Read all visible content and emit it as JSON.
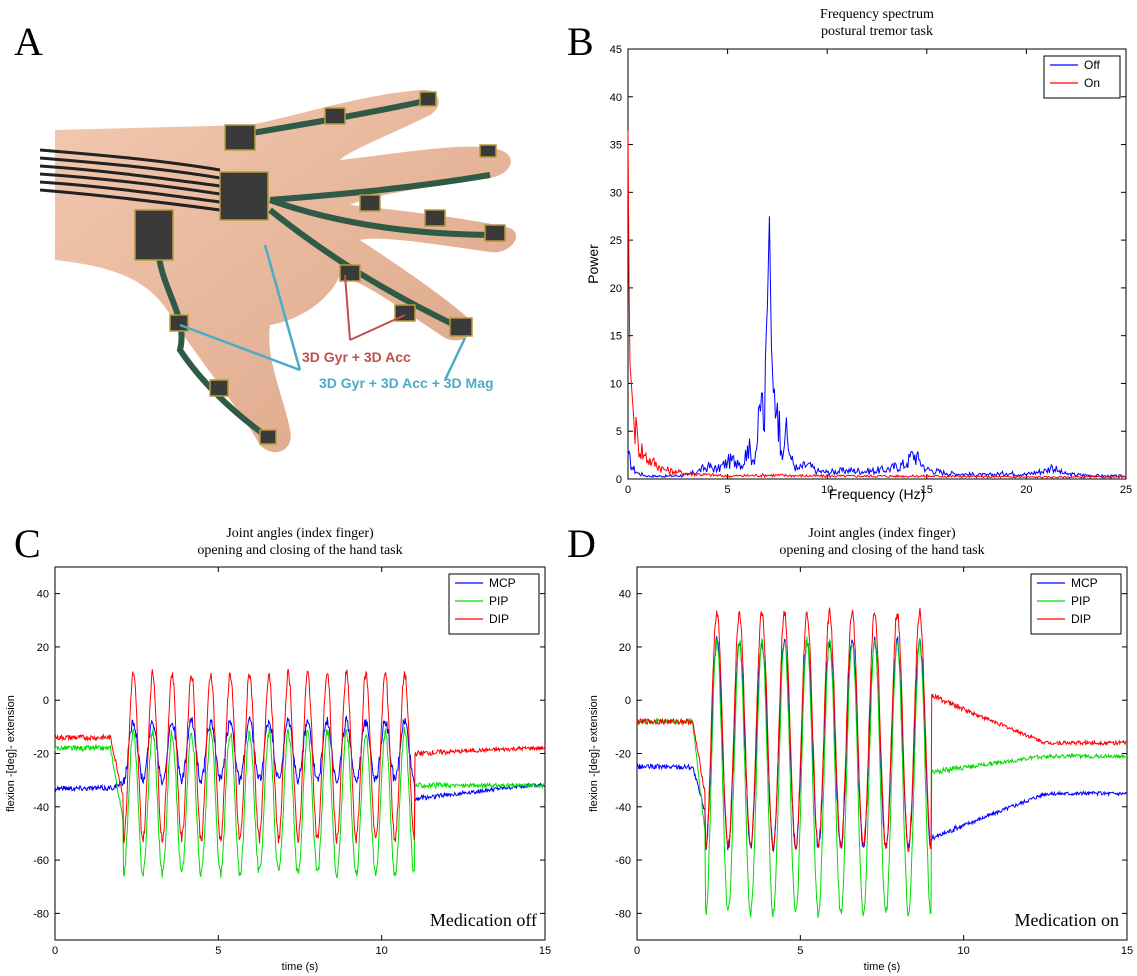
{
  "panels": {
    "A": {
      "letter": "A",
      "label_red": "3D Gyr + 3D Acc",
      "label_blue": "3D Gyr + 3D Acc + 3D Mag"
    },
    "B": {
      "letter": "B"
    },
    "C": {
      "letter": "C"
    },
    "D": {
      "letter": "D"
    }
  },
  "chart_data": [
    {
      "id": "B",
      "type": "line",
      "title": "Frequency spectrum",
      "subtitle": "postural tremor task",
      "xlabel": "Frequency (Hz)",
      "ylabel": "Power",
      "xlim": [
        0,
        25
      ],
      "ylim": [
        0,
        45
      ],
      "xticks": [
        0,
        5,
        10,
        15,
        20,
        25
      ],
      "yticks": [
        0,
        5,
        10,
        15,
        20,
        25,
        30,
        35,
        40,
        45
      ],
      "legend": "top-right",
      "series": [
        {
          "name": "Off",
          "color": "#0000ff",
          "x": [
            0,
            0.2,
            0.5,
            1,
            2,
            3,
            3.5,
            4,
            4.5,
            5,
            5.5,
            5.8,
            6,
            6.3,
            6.5,
            6.7,
            6.85,
            7.0,
            7.1,
            7.2,
            7.3,
            7.5,
            7.7,
            7.9,
            8.2,
            8.5,
            9,
            9.5,
            10,
            11,
            12,
            13,
            14,
            14.3,
            14.6,
            15,
            16,
            17,
            18,
            19,
            20,
            21,
            21.3,
            21.6,
            22,
            23,
            24,
            25
          ],
          "y": [
            2.5,
            1.2,
            0.6,
            0.3,
            0.3,
            0.4,
            0.8,
            1.3,
            1.0,
            1.8,
            2.0,
            1.5,
            3.5,
            2.0,
            4.0,
            9.0,
            5.0,
            18.0,
            27.5,
            14.0,
            9.0,
            8.0,
            3.0,
            5.0,
            2.0,
            1.0,
            1.5,
            0.8,
            0.7,
            0.9,
            0.8,
            1.0,
            1.6,
            2.7,
            2.0,
            1.0,
            0.6,
            0.5,
            0.4,
            0.6,
            0.5,
            0.9,
            1.3,
            0.8,
            0.5,
            0.4,
            0.3,
            0.3
          ]
        },
        {
          "name": "On",
          "color": "#ff0000",
          "x": [
            0,
            0.05,
            0.1,
            0.2,
            0.3,
            0.5,
            0.8,
            1.2,
            1.8,
            2.5,
            3.5,
            5,
            7,
            10,
            15,
            20,
            25
          ],
          "y": [
            36.5,
            21.0,
            12.0,
            9.0,
            6.0,
            4.0,
            2.5,
            1.8,
            1.0,
            0.7,
            0.5,
            0.3,
            0.4,
            0.3,
            0.3,
            0.2,
            0.2
          ]
        }
      ]
    },
    {
      "id": "C",
      "type": "line",
      "title": "Joint angles (index finger)",
      "subtitle": "opening and closing of the hand task",
      "xlabel": "time (s)",
      "ylabel": "flexion -[deg]- extension",
      "xlim": [
        0,
        15
      ],
      "ylim": [
        -90,
        50
      ],
      "xticks": [
        0,
        5,
        10,
        15
      ],
      "yticks": [
        -80,
        -60,
        -40,
        -20,
        0,
        20,
        40
      ],
      "legend": "top-right",
      "annotation": "Medication off",
      "series": [
        {
          "name": "MCP",
          "color": "#0000ff",
          "baseline": -35,
          "amp_top": -8,
          "amp_bot": -30,
          "pre": -33,
          "post": -32,
          "dip_after": -37
        },
        {
          "name": "PIP",
          "color": "#00dd00",
          "baseline": -18,
          "amp_top": -12,
          "amp_bot": -65,
          "pre": -18,
          "post": -32,
          "dip_after": -32
        },
        {
          "name": "DIP",
          "color": "#ff0000",
          "baseline": -15,
          "amp_top": 10,
          "amp_bot": -52,
          "pre": -14,
          "post": -18,
          "dip_after": -20
        }
      ],
      "cycles": {
        "start": 2.1,
        "end": 11.0,
        "count": 15
      }
    },
    {
      "id": "D",
      "type": "line",
      "title": "Joint angles (index finger)",
      "subtitle": "opening and closing of the hand task",
      "xlabel": "time (s)",
      "ylabel": "flexion -[deg]- extension",
      "xlim": [
        0,
        15
      ],
      "ylim": [
        -90,
        50
      ],
      "xticks": [
        0,
        5,
        10,
        15
      ],
      "yticks": [
        -80,
        -60,
        -40,
        -20,
        0,
        20,
        40
      ],
      "legend": "top-right",
      "annotation": "Medication on",
      "series": [
        {
          "name": "MCP",
          "color": "#0000ff",
          "baseline": -25,
          "amp_top": 22,
          "amp_bot": -55,
          "pre": -25,
          "post": -35,
          "dip_after": -52
        },
        {
          "name": "PIP",
          "color": "#00dd00",
          "baseline": -8,
          "amp_top": 22,
          "amp_bot": -80,
          "pre": -8,
          "post": -21,
          "dip_after": -27
        },
        {
          "name": "DIP",
          "color": "#ff0000",
          "baseline": -8,
          "amp_top": 33,
          "amp_bot": -55,
          "pre": -8,
          "post": -16,
          "dip_after": 2
        }
      ],
      "cycles": {
        "start": 2.1,
        "end": 9.0,
        "count": 10
      }
    }
  ]
}
